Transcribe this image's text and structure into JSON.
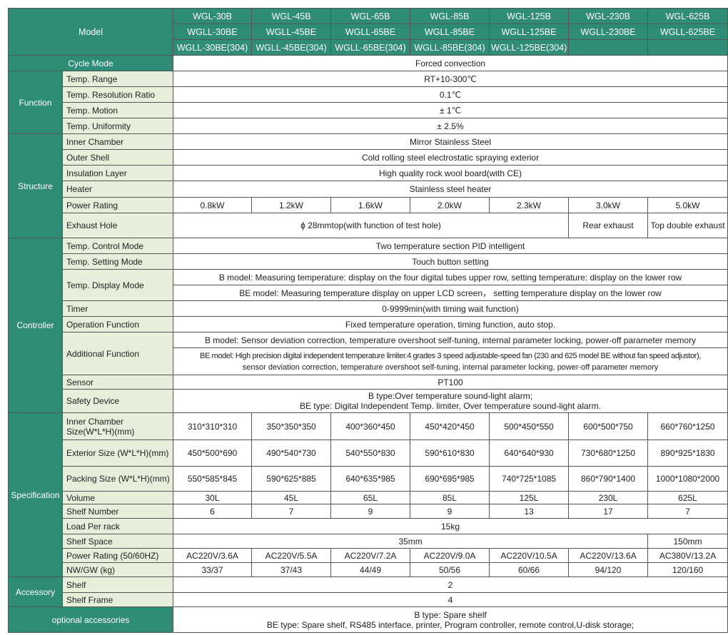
{
  "colors": {
    "header": "#2f8c76",
    "label": "#e5efda"
  },
  "model": {
    "label": "Model",
    "b": [
      "WGL-30B",
      "WGL-45B",
      "WGL-65B",
      "WGL-85B",
      "WGL-125B",
      "WGL-230B",
      "WGL-625B"
    ],
    "be": [
      "WGLL-30BE",
      "WGLL-45BE",
      "WGLL-65BE",
      "WGLL-85BE",
      "WGLL-125BE",
      "WGLL-230BE",
      "WGLL-625BE"
    ],
    "be304": [
      "WGLL-30BE(304)",
      "WGLL-45BE(304)",
      "WGLL-65BE(304)",
      "WGLL-85BE(304)",
      "WGLL-125BE(304)"
    ]
  },
  "cycle": {
    "label": "Cycle Mode",
    "value": "Forced convection"
  },
  "function": {
    "label": "Function",
    "rows": [
      {
        "label": "Temp. Range",
        "value": "RT+10-300℃"
      },
      {
        "label": "Temp. Resolution Ratio",
        "value": "0.1℃"
      },
      {
        "label": "Temp. Motion",
        "value": "± 1℃"
      },
      {
        "label": "Temp. Uniformity",
        "value": "± 2.5%"
      }
    ]
  },
  "structure": {
    "label": "Structure",
    "rows": [
      {
        "label": "Inner Chamber",
        "value": "Mirror Stainless Steel"
      },
      {
        "label": "Outer Shell",
        "value": "Cold rolling steel electrostatic spraying exterior"
      },
      {
        "label": "Insulation Layer",
        "value": "High quality rock wool board(with CE)"
      },
      {
        "label": "Heater",
        "value": "Stainless steel heater"
      }
    ],
    "power": {
      "label": "Power Rating",
      "values": [
        "0.8kW",
        "1.2kW",
        "1.6kW",
        "2.0kW",
        "2.3kW",
        "3.0kW",
        "5.0kW"
      ]
    },
    "exhaust": {
      "label": "Exhaust Hole",
      "common": "ϕ 28mmtop(with function of test hole)",
      "c6": "Rear exhaust",
      "c7": "Top double exhaust"
    }
  },
  "controller": {
    "label": "Controller",
    "control": {
      "label": "Temp. Control Mode",
      "value": "Two temperature section PID intelligent"
    },
    "setting": {
      "label": "Temp. Setting Mode",
      "value": "Touch button setting"
    },
    "display": {
      "label": "Temp. Display Mode",
      "b": "B model: Measuring temperature: display on the four digital tubes upper row, setting temperature: display on the lower row",
      "be": "BE model: Measuring temperature display on upper LCD screen，  setting temperature  display on the lower row"
    },
    "timer": {
      "label": "Timer",
      "value": "0-9999min(with timing wait function)"
    },
    "operation": {
      "label": "Operation Function",
      "value": "Fixed temperature operation, timing function, auto stop."
    },
    "additional": {
      "label": "Additional Function",
      "b": "B model: Sensor deviation correction, temperature overshoot self-tuning, internal parameter locking, power-off parameter memory",
      "be1": "BE model: High precision digital independent temperature limiter.4 grades 3 speed adjustable-speed fan (230 and 625 model BE without fan speed adjustor),",
      "be2": "sensor deviation correction, temperature overshoot self-tuning, internal parameter locking, power-off parameter memory"
    },
    "sensor": {
      "label": "Sensor",
      "value": "PT100"
    },
    "safety": {
      "label": "Safety Device",
      "b": "B type:Over temperature sound-light alarm;",
      "be": "BE type: Digital Independent Temp. limiter,  Over temperature sound-light alarm."
    }
  },
  "spec": {
    "label": "Specification",
    "inner": {
      "label": "Inner Chamber Size(W*L*H)(mm)",
      "values": [
        "310*310*310",
        "350*350*350",
        "400*360*450",
        "450*420*450",
        "500*450*550",
        "600*500*750",
        "660*760*1250"
      ]
    },
    "exterior": {
      "label": "Exterior Size (W*L*H)(mm)",
      "values": [
        "450*500*690",
        "490*540*730",
        "540*550*830",
        "590*610*830",
        "640*640*930",
        "730*680*1250",
        "890*925*1830"
      ]
    },
    "packing": {
      "label": "Packing Size (W*L*H)(mm)",
      "values": [
        "550*585*845",
        "590*625*885",
        "640*635*985",
        "690*695*985",
        "740*725*1085",
        "860*790*1400",
        "1000*1080*2000"
      ]
    },
    "volume": {
      "label": "Volume",
      "values": [
        "30L",
        "45L",
        "65L",
        "85L",
        "125L",
        "230L",
        "625L"
      ]
    },
    "shelfnum": {
      "label": "Shelf Number",
      "values": [
        "6",
        "7",
        "9",
        "9",
        "13",
        "17",
        "7"
      ]
    },
    "load": {
      "label": "Load Per rack",
      "value": "15kg"
    },
    "shelfspace": {
      "label": "Shelf Space",
      "common": "35mm",
      "c7": "150mm"
    },
    "power": {
      "label": "Power Rating (50/60HZ)",
      "values": [
        "AC220V/3.6A",
        "AC220V/5.5A",
        "AC220V/7.2A",
        "AC220V/9.0A",
        "AC220V/10.5A",
        "AC220V/13.6A",
        "AC380V/13.2A"
      ]
    },
    "weight": {
      "label": "NW/GW (kg)",
      "values": [
        "33/37",
        "37/43",
        "44/49",
        "50/56",
        "60/66",
        "94/120",
        "120/160"
      ]
    }
  },
  "accessory": {
    "label": "Accessory",
    "shelf": {
      "label": "Shelf",
      "value": "2"
    },
    "frame": {
      "label": "Shelf Frame",
      "value": "4"
    }
  },
  "optional": {
    "label": "optional accessories",
    "b": "B type:  Spare shelf",
    "be": "BE type: Spare shelf, RS485 interface, printer, Program controller, remote control,U-disk storage;"
  }
}
